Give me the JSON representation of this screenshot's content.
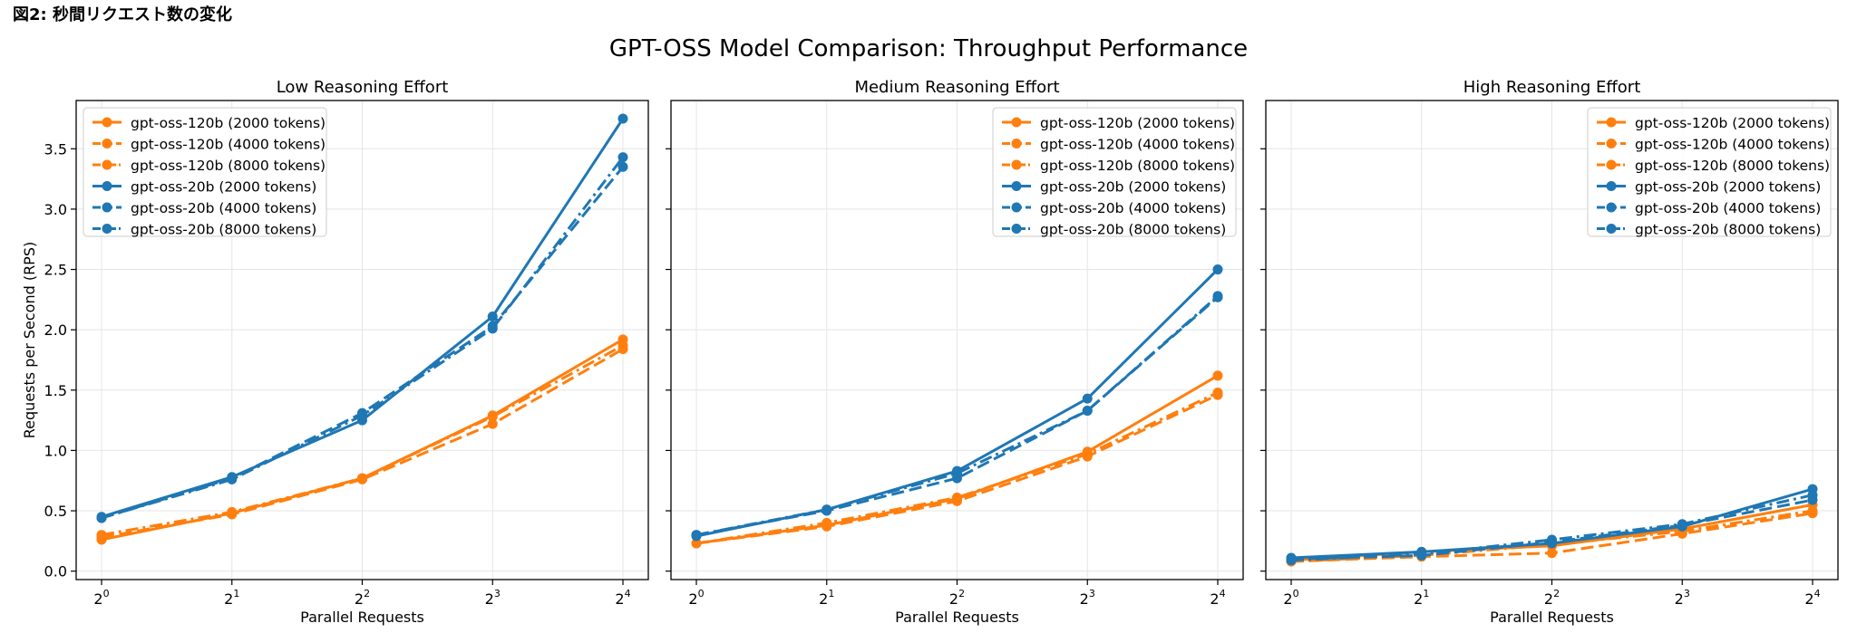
{
  "caption": "図2: 秒間リクエスト数の変化",
  "figure_title": "GPT-OSS Model Comparison: Throughput Performance",
  "colors": {
    "gpt-oss-120b": "#ff7f0e",
    "gpt-oss-20b": "#1f77b4",
    "grid": "#e5e5e5"
  },
  "chart_data": [
    {
      "type": "line",
      "title": "Low Reasoning Effort",
      "xlabel": "Parallel Requests",
      "ylabel": "Requests per Second (RPS)",
      "x": [
        1,
        2,
        4,
        8,
        16
      ],
      "x_tick_labels": [
        [
          "2",
          "0"
        ],
        [
          "2",
          "1"
        ],
        [
          "2",
          "2"
        ],
        [
          "2",
          "3"
        ],
        [
          "2",
          "4"
        ]
      ],
      "x_scale": "log2",
      "ylim": [
        -0.07,
        3.9
      ],
      "y_ticks": [
        "0.0",
        "0.5",
        "1.0",
        "1.5",
        "2.0",
        "2.5",
        "3.0",
        "3.5"
      ],
      "grid": true,
      "legend_position": "top-left",
      "series": [
        {
          "name": "gpt-oss-120b (2000 tokens)",
          "model": "gpt-oss-120b",
          "line_style": "solid",
          "values": [
            0.26,
            0.48,
            0.77,
            1.29,
            1.92
          ]
        },
        {
          "name": "gpt-oss-120b (4000 tokens)",
          "model": "gpt-oss-120b",
          "line_style": "dashed",
          "values": [
            0.28,
            0.47,
            0.76,
            1.22,
            1.84
          ]
        },
        {
          "name": "gpt-oss-120b (8000 tokens)",
          "model": "gpt-oss-120b",
          "line_style": "dashdot",
          "values": [
            0.3,
            0.49,
            0.77,
            1.28,
            1.87
          ]
        },
        {
          "name": "gpt-oss-20b (2000 tokens)",
          "model": "gpt-oss-20b",
          "line_style": "solid",
          "values": [
            0.45,
            0.78,
            1.25,
            2.11,
            3.75
          ]
        },
        {
          "name": "gpt-oss-20b (4000 tokens)",
          "model": "gpt-oss-20b",
          "line_style": "dashed",
          "values": [
            0.44,
            0.77,
            1.31,
            2.03,
            3.35
          ]
        },
        {
          "name": "gpt-oss-20b (8000 tokens)",
          "model": "gpt-oss-20b",
          "line_style": "dashdot",
          "values": [
            0.44,
            0.76,
            1.29,
            2.01,
            3.43
          ]
        }
      ]
    },
    {
      "type": "line",
      "title": "Medium Reasoning Effort",
      "xlabel": "Parallel Requests",
      "ylabel": "",
      "x": [
        1,
        2,
        4,
        8,
        16
      ],
      "x_tick_labels": [
        [
          "2",
          "0"
        ],
        [
          "2",
          "1"
        ],
        [
          "2",
          "2"
        ],
        [
          "2",
          "3"
        ],
        [
          "2",
          "4"
        ]
      ],
      "x_scale": "log2",
      "ylim": [
        -0.07,
        3.9
      ],
      "y_ticks": [],
      "grid": true,
      "legend_position": "top-right",
      "series": [
        {
          "name": "gpt-oss-120b (2000 tokens)",
          "model": "gpt-oss-120b",
          "line_style": "solid",
          "values": [
            0.23,
            0.38,
            0.6,
            0.99,
            1.62
          ]
        },
        {
          "name": "gpt-oss-120b (4000 tokens)",
          "model": "gpt-oss-120b",
          "line_style": "dashed",
          "values": [
            0.23,
            0.37,
            0.58,
            0.95,
            1.46
          ]
        },
        {
          "name": "gpt-oss-120b (8000 tokens)",
          "model": "gpt-oss-120b",
          "line_style": "dashdot",
          "values": [
            0.23,
            0.4,
            0.61,
            0.97,
            1.48
          ]
        },
        {
          "name": "gpt-oss-20b (2000 tokens)",
          "model": "gpt-oss-20b",
          "line_style": "solid",
          "values": [
            0.29,
            0.51,
            0.83,
            1.43,
            2.5
          ]
        },
        {
          "name": "gpt-oss-20b (4000 tokens)",
          "model": "gpt-oss-20b",
          "line_style": "dashed",
          "values": [
            0.3,
            0.5,
            0.77,
            1.33,
            2.27
          ]
        },
        {
          "name": "gpt-oss-20b (8000 tokens)",
          "model": "gpt-oss-20b",
          "line_style": "dashdot",
          "values": [
            0.3,
            0.51,
            0.81,
            1.33,
            2.28
          ]
        }
      ]
    },
    {
      "type": "line",
      "title": "High Reasoning Effort",
      "xlabel": "Parallel Requests",
      "ylabel": "",
      "x": [
        1,
        2,
        4,
        8,
        16
      ],
      "x_tick_labels": [
        [
          "2",
          "0"
        ],
        [
          "2",
          "1"
        ],
        [
          "2",
          "2"
        ],
        [
          "2",
          "3"
        ],
        [
          "2",
          "4"
        ]
      ],
      "x_scale": "log2",
      "ylim": [
        -0.07,
        3.9
      ],
      "y_ticks": [],
      "grid": true,
      "legend_position": "top-right",
      "series": [
        {
          "name": "gpt-oss-120b (2000 tokens)",
          "model": "gpt-oss-120b",
          "line_style": "solid",
          "values": [
            0.09,
            0.16,
            0.21,
            0.35,
            0.55
          ]
        },
        {
          "name": "gpt-oss-120b (4000 tokens)",
          "model": "gpt-oss-120b",
          "line_style": "dashed",
          "values": [
            0.08,
            0.12,
            0.15,
            0.31,
            0.48
          ]
        },
        {
          "name": "gpt-oss-120b (8000 tokens)",
          "model": "gpt-oss-120b",
          "line_style": "dashdot",
          "values": [
            0.08,
            0.13,
            0.22,
            0.33,
            0.5
          ]
        },
        {
          "name": "gpt-oss-20b (2000 tokens)",
          "model": "gpt-oss-20b",
          "line_style": "solid",
          "values": [
            0.11,
            0.16,
            0.23,
            0.37,
            0.68
          ]
        },
        {
          "name": "gpt-oss-20b (4000 tokens)",
          "model": "gpt-oss-20b",
          "line_style": "dashed",
          "values": [
            0.1,
            0.13,
            0.24,
            0.38,
            0.59
          ]
        },
        {
          "name": "gpt-oss-20b (8000 tokens)",
          "model": "gpt-oss-20b",
          "line_style": "dashdot",
          "values": [
            0.09,
            0.14,
            0.26,
            0.39,
            0.63
          ]
        }
      ]
    }
  ]
}
